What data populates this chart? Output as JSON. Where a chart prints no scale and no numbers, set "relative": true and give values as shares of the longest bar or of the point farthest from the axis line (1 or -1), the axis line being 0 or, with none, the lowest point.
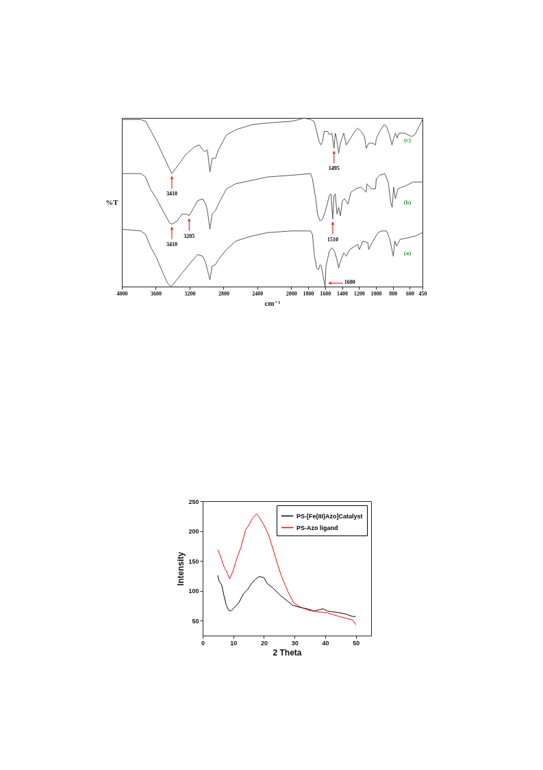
{
  "chart_data": [
    {
      "type": "line",
      "xlabel": "cm⁻¹",
      "ylabel": "%T",
      "relative": true,
      "xlim": [
        4000,
        450
      ],
      "xticks": [
        4000,
        3600,
        3200,
        2800,
        2400,
        2000,
        1800,
        1600,
        1400,
        1200,
        1000,
        800,
        600,
        450
      ],
      "series": [
        {
          "name": "(c)",
          "color": "#555555",
          "x": [
            4000,
            3775,
            3720,
            3665,
            3590,
            3515,
            3440,
            3410,
            3365,
            3250,
            3140,
            3085,
            3045,
            3020,
            2990,
            2960,
            2935,
            2895,
            2860,
            2765,
            2655,
            2465,
            2280,
            2000,
            1910,
            1850,
            1770,
            1730,
            1700,
            1670,
            1650,
            1630,
            1610,
            1570,
            1550,
            1520,
            1495,
            1480,
            1465,
            1440,
            1420,
            1400,
            1380,
            1350,
            1300,
            1235,
            1215,
            1175,
            1135,
            1115,
            1085,
            1035,
            1005,
            995,
            955,
            905,
            875,
            840,
            810,
            790,
            770,
            750,
            730,
            660,
            580,
            540,
            480,
            450
          ],
          "values": [
            0.99,
            0.99,
            0.98,
            0.93,
            0.86,
            0.78,
            0.7,
            0.67,
            0.7,
            0.78,
            0.83,
            0.84,
            0.81,
            0.8,
            0.81,
            0.68,
            0.76,
            0.76,
            0.81,
            0.9,
            0.93,
            0.96,
            0.97,
            0.98,
            0.99,
            1.0,
            0.99,
            0.98,
            0.92,
            0.86,
            0.84,
            0.86,
            0.92,
            0.92,
            0.9,
            0.91,
            0.82,
            0.91,
            0.88,
            0.79,
            0.85,
            0.88,
            0.91,
            0.84,
            0.88,
            0.93,
            0.94,
            0.92,
            0.89,
            0.82,
            0.85,
            0.85,
            0.84,
            0.88,
            0.92,
            0.96,
            0.95,
            0.9,
            0.84,
            0.88,
            0.91,
            0.88,
            0.91,
            0.91,
            0.89,
            0.9,
            0.96,
            0.99
          ]
        },
        {
          "name": "(b)",
          "color": "#555555",
          "x": [
            4000,
            3775,
            3720,
            3665,
            3590,
            3515,
            3440,
            3410,
            3345,
            3290,
            3235,
            3205,
            3160,
            3105,
            3045,
            3010,
            2990,
            2960,
            2935,
            2895,
            2860,
            2765,
            2655,
            2465,
            2280,
            2000,
            1770,
            1750,
            1710,
            1690,
            1660,
            1630,
            1590,
            1550,
            1530,
            1510,
            1495,
            1480,
            1460,
            1440,
            1420,
            1395,
            1370,
            1330,
            1295,
            1235,
            1175,
            1115,
            1105,
            1055,
            1005,
            995,
            955,
            895,
            855,
            825,
            808,
            790,
            770,
            740,
            640,
            560,
            450
          ],
          "values": [
            0.67,
            0.67,
            0.65,
            0.58,
            0.52,
            0.45,
            0.38,
            0.37,
            0.39,
            0.43,
            0.43,
            0.42,
            0.46,
            0.51,
            0.52,
            0.49,
            0.45,
            0.34,
            0.43,
            0.45,
            0.49,
            0.58,
            0.61,
            0.63,
            0.65,
            0.66,
            0.67,
            0.64,
            0.52,
            0.43,
            0.39,
            0.4,
            0.46,
            0.54,
            0.55,
            0.4,
            0.54,
            0.55,
            0.43,
            0.47,
            0.42,
            0.51,
            0.52,
            0.49,
            0.56,
            0.58,
            0.59,
            0.56,
            0.61,
            0.58,
            0.58,
            0.64,
            0.66,
            0.67,
            0.62,
            0.5,
            0.47,
            0.59,
            0.52,
            0.58,
            0.6,
            0.62,
            0.62
          ]
        },
        {
          "name": "(a)",
          "color": "#555555",
          "x": [
            4000,
            3775,
            3720,
            3665,
            3590,
            3515,
            3460,
            3420,
            3385,
            3290,
            3175,
            3105,
            3045,
            3010,
            2990,
            2960,
            2935,
            2895,
            2860,
            2765,
            2655,
            2465,
            2280,
            2000,
            1770,
            1750,
            1725,
            1700,
            1680,
            1660,
            1645,
            1600,
            1590,
            1550,
            1520,
            1490,
            1460,
            1440,
            1425,
            1410,
            1380,
            1350,
            1310,
            1215,
            1195,
            1155,
            1095,
            1085,
            1035,
            975,
            935,
            875,
            835,
            795,
            775,
            755,
            715,
            615,
            535,
            450
          ],
          "values": [
            0.34,
            0.33,
            0.31,
            0.24,
            0.17,
            0.08,
            0.02,
            0,
            0.02,
            0.08,
            0.15,
            0.19,
            0.18,
            0.14,
            0.1,
            0.04,
            0.12,
            0.13,
            0.16,
            0.22,
            0.27,
            0.3,
            0.32,
            0.33,
            0.33,
            0.31,
            0.18,
            0.11,
            0.1,
            0.13,
            0.12,
            0,
            0.12,
            0.21,
            0.23,
            0.21,
            0.16,
            0.11,
            0.14,
            0.16,
            0.2,
            0.18,
            0.22,
            0.25,
            0.22,
            0.27,
            0.26,
            0.22,
            0.27,
            0.32,
            0.33,
            0.33,
            0.28,
            0.18,
            0.27,
            0.24,
            0.28,
            0.29,
            0.3,
            0.32
          ]
        }
      ],
      "annotations": [
        {
          "text": "3410",
          "x": 3410,
          "y": 0.67
        },
        {
          "text": "1495",
          "x": 1495,
          "y": 0.82
        },
        {
          "text": "3410",
          "x": 3410,
          "y": 0.37
        },
        {
          "text": "3205",
          "x": 3205,
          "y": 0.42
        },
        {
          "text": "1510",
          "x": 1510,
          "y": 0.4
        },
        {
          "text": "1600",
          "x": 1600,
          "y": 0
        }
      ]
    },
    {
      "type": "line",
      "xlabel": "2 Theta",
      "ylabel": "Intensity",
      "xlim": [
        0,
        55
      ],
      "xticks": [
        0,
        10,
        20,
        30,
        40,
        50
      ],
      "ylim": [
        25,
        250
      ],
      "yticks": [
        50,
        100,
        150,
        200,
        250
      ],
      "legend": "top right",
      "series": [
        {
          "name": "PS-[Fe(III)Azo]Catalyst",
          "color": "#000000",
          "x": [
            4.9,
            5.4,
            6.2,
            6.9,
            7.7,
            8.4,
            9.2,
            10.3,
            11.8,
            13.3,
            14.8,
            16.2,
            17.4,
            18.5,
            20,
            21.1,
            22.9,
            25.2,
            27.4,
            29.3,
            31.9,
            34.1,
            36.4,
            39.3,
            40.8,
            43.8,
            46.8,
            49,
            50
          ],
          "values": [
            126,
            116,
            110,
            93,
            76,
            68,
            66,
            72,
            80,
            95,
            103,
            114,
            120,
            124,
            122,
            112,
            105,
            93,
            84,
            76,
            72,
            70,
            66,
            70,
            66,
            64,
            61,
            57,
            57
          ]
        },
        {
          "name": "PS-Azo ligand",
          "color": "#ff0000",
          "x": [
            4.9,
            5.8,
            6.9,
            7.9,
            8.8,
            9.9,
            11,
            12.5,
            14,
            15.1,
            16.2,
            17.6,
            18.5,
            20,
            21.5,
            22.9,
            24.4,
            25.9,
            27.8,
            29.7,
            31.5,
            34.1,
            37.1,
            40.8,
            44.6,
            47.5,
            49,
            50
          ],
          "values": [
            169,
            158,
            141,
            131,
            120,
            133,
            152,
            173,
            202,
            210,
            221,
            229,
            223,
            210,
            194,
            171,
            145,
            122,
            99,
            80,
            74,
            68,
            65,
            63,
            57,
            53,
            51,
            43
          ]
        }
      ]
    }
  ]
}
